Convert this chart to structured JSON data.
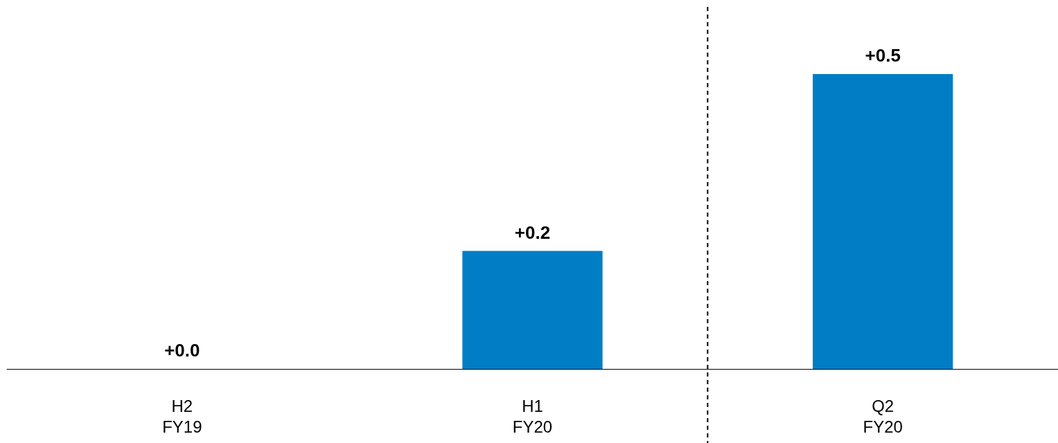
{
  "chart_data": {
    "type": "bar",
    "categories": [
      "H2\nFY19",
      "H1\nFY20",
      "Q2\nFY20"
    ],
    "values": [
      0.0,
      0.2,
      0.5
    ],
    "value_labels": [
      "+0.0",
      "+0.2",
      "+0.5"
    ],
    "color": "#007dc5",
    "grid": false
  }
}
